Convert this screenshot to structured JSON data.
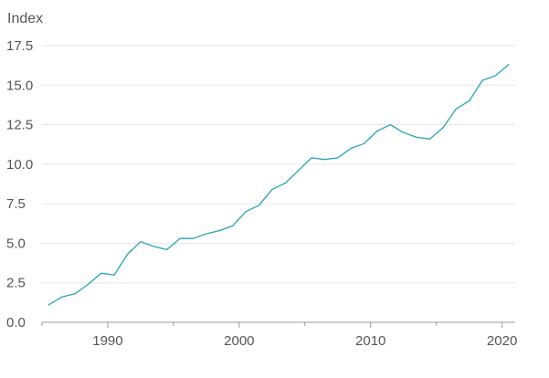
{
  "chart_data": {
    "type": "line",
    "title": "",
    "ylabel": "Index",
    "xlabel": "",
    "ylim": [
      0,
      17.5
    ],
    "xlim": [
      1985,
      2021
    ],
    "y_ticks": [
      "0.0",
      "2.5",
      "5.0",
      "7.5",
      "10.0",
      "12.5",
      "15.0",
      "17.5"
    ],
    "x_ticks": [
      "1990",
      "2000",
      "2010",
      "2020"
    ],
    "grid": true,
    "legend": "none",
    "line_color": "#2aa3b4",
    "series": [
      {
        "x": [
          1985.5,
          1986.5,
          1987.5,
          1988.5,
          1989.5,
          1990.5,
          1991.5,
          1992.5,
          1993.5,
          1994.5,
          1995.5,
          1996.5,
          1997.5,
          1998.5,
          1999.5,
          2000.5,
          2001.5,
          2002.5,
          2003.5,
          2004.5,
          2005.5,
          2006.5,
          2007.5,
          2008.5,
          2009.5,
          2010.5,
          2011.5,
          2012.5,
          2013.5,
          2014.5,
          2015.5,
          2016.5,
          2017.5,
          2018.5,
          2019.5,
          2020.5
        ],
        "values": [
          1.1,
          1.6,
          1.8,
          2.4,
          3.1,
          3.0,
          4.3,
          5.1,
          4.8,
          4.6,
          5.3,
          5.3,
          5.6,
          5.8,
          6.1,
          7.0,
          7.4,
          8.4,
          8.8,
          9.6,
          10.4,
          10.3,
          10.4,
          11.0,
          11.3,
          12.1,
          12.5,
          12.0,
          11.7,
          11.6,
          12.3,
          13.5,
          14.0,
          15.3,
          15.6,
          16.3
        ]
      }
    ]
  }
}
